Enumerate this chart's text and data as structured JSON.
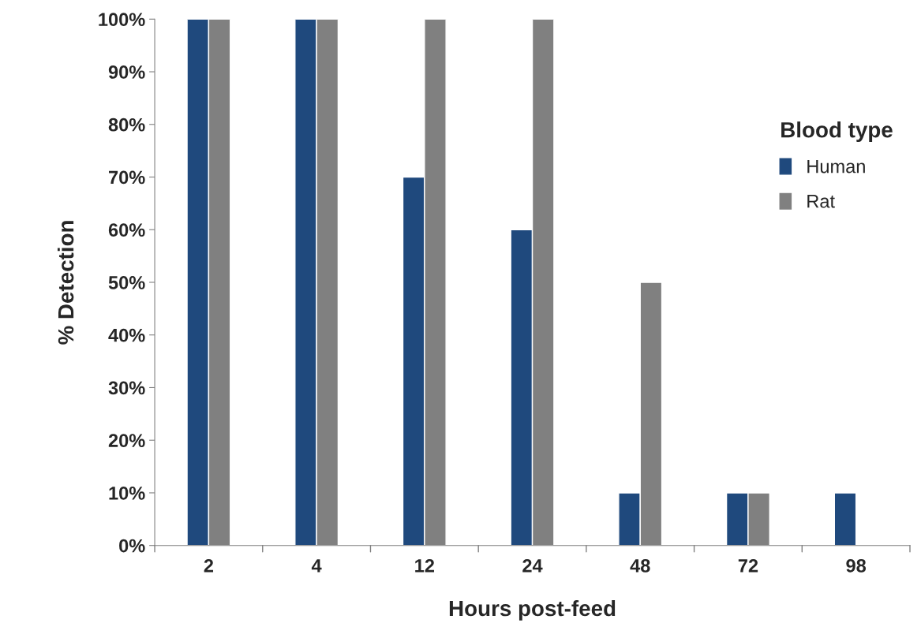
{
  "chart_data": {
    "type": "bar",
    "xlabel": "Hours post-feed",
    "ylabel": "% Detection",
    "legend_title": "Blood type",
    "categories": [
      "2",
      "4",
      "12",
      "24",
      "48",
      "72",
      "98"
    ],
    "series": [
      {
        "name": "Human",
        "color": "#1f497d",
        "values": [
          100,
          100,
          70,
          60,
          10,
          10,
          10
        ]
      },
      {
        "name": "Rat",
        "color": "#808080",
        "values": [
          100,
          100,
          100,
          100,
          50,
          10,
          null
        ]
      }
    ],
    "ylim": [
      0,
      100
    ],
    "yticks": [
      {
        "value": 0,
        "label": "0%"
      },
      {
        "value": 10,
        "label": "10%"
      },
      {
        "value": 20,
        "label": "20%"
      },
      {
        "value": 30,
        "label": "30%"
      },
      {
        "value": 40,
        "label": "40%"
      },
      {
        "value": 50,
        "label": "50%"
      },
      {
        "value": 60,
        "label": "60%"
      },
      {
        "value": 70,
        "label": "70%"
      },
      {
        "value": 80,
        "label": "80%"
      },
      {
        "value": 90,
        "label": "90%"
      },
      {
        "value": 100,
        "label": "100%"
      }
    ],
    "grid": false,
    "legend": "right"
  }
}
